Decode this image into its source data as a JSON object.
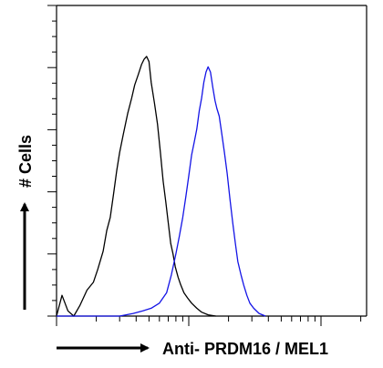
{
  "chart_data": {
    "type": "line",
    "title": "",
    "xlabel": "Anti- PRDM16 / MEL1",
    "ylabel": "# Cells",
    "x_scale": "log",
    "grid": false,
    "legend": "none",
    "series": [
      {
        "color": "#000000",
        "points": [
          [
            1.0,
            0.0
          ],
          [
            1.1,
            0.08
          ],
          [
            1.22,
            0.02
          ],
          [
            1.35,
            0.0
          ],
          [
            1.5,
            0.04
          ],
          [
            1.7,
            0.1
          ],
          [
            1.9,
            0.13
          ],
          [
            2.05,
            0.18
          ],
          [
            2.25,
            0.25
          ],
          [
            2.4,
            0.33
          ],
          [
            2.55,
            0.38
          ],
          [
            2.7,
            0.47
          ],
          [
            2.85,
            0.56
          ],
          [
            3.0,
            0.63
          ],
          [
            3.2,
            0.7
          ],
          [
            3.45,
            0.78
          ],
          [
            3.7,
            0.84
          ],
          [
            3.9,
            0.89
          ],
          [
            4.15,
            0.93
          ],
          [
            4.4,
            0.97
          ],
          [
            4.6,
            0.99
          ],
          [
            4.8,
            1.0
          ],
          [
            5.0,
            0.98
          ],
          [
            5.2,
            0.9
          ],
          [
            5.5,
            0.82
          ],
          [
            5.8,
            0.74
          ],
          [
            6.1,
            0.63
          ],
          [
            6.4,
            0.52
          ],
          [
            6.7,
            0.44
          ],
          [
            7.0,
            0.36
          ],
          [
            7.3,
            0.28
          ],
          [
            7.6,
            0.24
          ],
          [
            7.9,
            0.19
          ],
          [
            8.3,
            0.15
          ],
          [
            8.7,
            0.12
          ],
          [
            9.2,
            0.09
          ],
          [
            9.8,
            0.07
          ],
          [
            10.5,
            0.05
          ],
          [
            11.5,
            0.03
          ],
          [
            12.5,
            0.015
          ],
          [
            14.0,
            0.005
          ],
          [
            16.0,
            0.0
          ]
        ]
      },
      {
        "color": "#1414e6",
        "points": [
          [
            1.0,
            0.0
          ],
          [
            3.0,
            0.0
          ],
          [
            3.8,
            0.01
          ],
          [
            4.5,
            0.02
          ],
          [
            5.2,
            0.03
          ],
          [
            6.0,
            0.05
          ],
          [
            6.8,
            0.09
          ],
          [
            7.4,
            0.16
          ],
          [
            8.0,
            0.24
          ],
          [
            8.5,
            0.31
          ],
          [
            9.0,
            0.38
          ],
          [
            9.5,
            0.46
          ],
          [
            10.0,
            0.54
          ],
          [
            10.5,
            0.62
          ],
          [
            11.0,
            0.67
          ],
          [
            11.5,
            0.72
          ],
          [
            12.0,
            0.79
          ],
          [
            12.5,
            0.84
          ],
          [
            13.0,
            0.9
          ],
          [
            13.5,
            0.94
          ],
          [
            14.0,
            0.96
          ],
          [
            14.6,
            0.94
          ],
          [
            15.2,
            0.88
          ],
          [
            15.8,
            0.83
          ],
          [
            16.3,
            0.8
          ],
          [
            17.0,
            0.77
          ],
          [
            17.8,
            0.7
          ],
          [
            18.6,
            0.63
          ],
          [
            19.5,
            0.55
          ],
          [
            20.5,
            0.45
          ],
          [
            21.5,
            0.36
          ],
          [
            22.5,
            0.28
          ],
          [
            23.5,
            0.21
          ],
          [
            24.8,
            0.16
          ],
          [
            26.0,
            0.12
          ],
          [
            27.5,
            0.08
          ],
          [
            29.0,
            0.05
          ],
          [
            31.0,
            0.03
          ],
          [
            34.0,
            0.01
          ],
          [
            38.0,
            0.0
          ]
        ]
      }
    ]
  }
}
